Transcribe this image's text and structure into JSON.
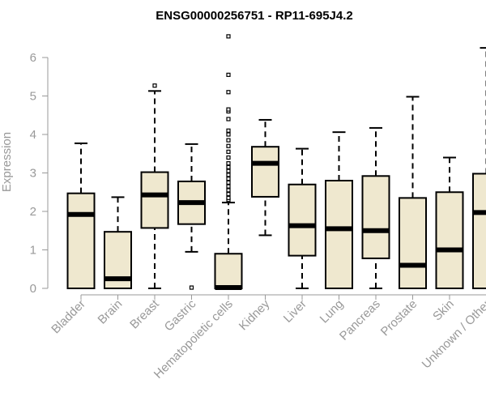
{
  "chart_data": {
    "type": "boxplot",
    "title": "ENSG00000256751 - RP11-695J4.2",
    "ylabel": "Expression",
    "xlabel": "",
    "ylim": [
      0,
      6.5
    ],
    "yticks": [
      "0",
      "1",
      "2",
      "3",
      "4",
      "5",
      "6"
    ],
    "categories": [
      "Bladder",
      "Brain",
      "Breast",
      "Gastric",
      "Hematopoietic cells",
      "Kidney",
      "Liver",
      "Lung",
      "Pancreas",
      "Prostate",
      "Skin",
      "Unknown / Other"
    ],
    "colors": {
      "box_fill": "#efe8cf",
      "stroke": "#000000",
      "axis_text": "#999999"
    },
    "boxes": [
      {
        "name": "Bladder",
        "min": 0,
        "q1": 0,
        "median": 1.92,
        "q3": 2.47,
        "max": 3.77,
        "outliers": []
      },
      {
        "name": "Brain",
        "min": 0,
        "q1": 0,
        "median": 0.25,
        "q3": 1.47,
        "max": 2.37,
        "outliers": []
      },
      {
        "name": "Breast",
        "min": 0,
        "q1": 1.57,
        "median": 2.43,
        "q3": 3.02,
        "max": 5.13,
        "outliers": [
          5.27
        ]
      },
      {
        "name": "Gastric",
        "min": 0.95,
        "q1": 1.67,
        "median": 2.23,
        "q3": 2.78,
        "max": 3.75,
        "outliers": [
          0.02
        ]
      },
      {
        "name": "Hematopoietic cells",
        "min": 0,
        "q1": 0,
        "median": 0.02,
        "q3": 0.9,
        "max": 2.23,
        "outliers": [
          2.3,
          2.35,
          2.45,
          2.55,
          2.65,
          2.75,
          2.85,
          2.95,
          3.05,
          3.15,
          3.25,
          3.4,
          3.55,
          3.7,
          3.85,
          4.0,
          4.1,
          4.4,
          4.6,
          4.65,
          5.1,
          5.55,
          6.55
        ]
      },
      {
        "name": "Kidney",
        "min": 1.38,
        "q1": 2.38,
        "median": 3.25,
        "q3": 3.68,
        "max": 4.38,
        "outliers": []
      },
      {
        "name": "Liver",
        "min": 0,
        "q1": 0.85,
        "median": 1.63,
        "q3": 2.7,
        "max": 3.63,
        "outliers": []
      },
      {
        "name": "Lung",
        "min": 0,
        "q1": 0,
        "median": 1.55,
        "q3": 2.8,
        "max": 4.06,
        "outliers": []
      },
      {
        "name": "Pancreas",
        "min": 0,
        "q1": 0.78,
        "median": 1.5,
        "q3": 2.92,
        "max": 4.17,
        "outliers": []
      },
      {
        "name": "Prostate",
        "min": 0,
        "q1": 0,
        "median": 0.6,
        "q3": 2.35,
        "max": 4.98,
        "outliers": []
      },
      {
        "name": "Skin",
        "min": 0,
        "q1": 0,
        "median": 1.0,
        "q3": 2.5,
        "max": 3.4,
        "outliers": []
      },
      {
        "name": "Unknown / Other",
        "min": 0,
        "q1": 0,
        "median": 1.97,
        "q3": 2.98,
        "max": 6.25,
        "outliers": []
      }
    ]
  }
}
